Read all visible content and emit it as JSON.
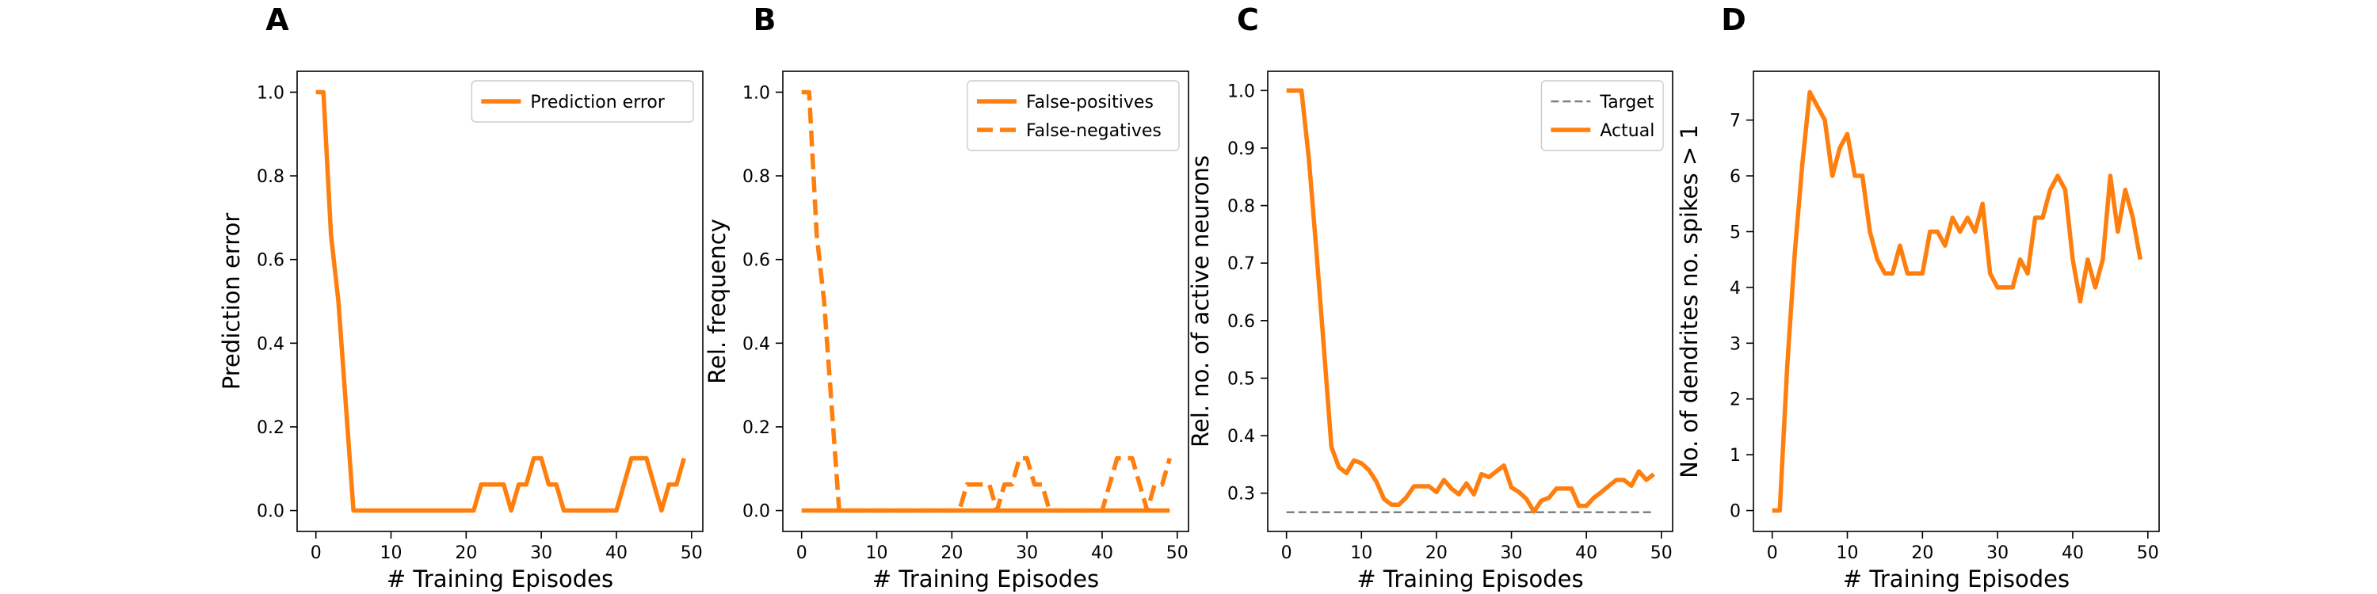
{
  "colors": {
    "orange": "#ff7f0e",
    "target": "#7f7f7f",
    "axis": "#000000"
  },
  "chart_data": [
    {
      "type": "line",
      "panel": "A",
      "xlabel": "# Training Episodes",
      "ylabel": "Prediction error",
      "xlim": [
        -2.5,
        51.5
      ],
      "ylim": [
        -0.05,
        1.05
      ],
      "xticks": [
        0,
        10,
        20,
        30,
        40,
        50
      ],
      "yticks": [
        0.0,
        0.2,
        0.4,
        0.6,
        0.8,
        1.0
      ],
      "ytick_decimals": 1,
      "legend_position": "top-right",
      "series": [
        {
          "name": "Prediction error",
          "style": "solid",
          "x": [
            0,
            1,
            2,
            3,
            4,
            5,
            6,
            7,
            8,
            9,
            10,
            11,
            12,
            13,
            14,
            15,
            16,
            17,
            18,
            19,
            20,
            21,
            22,
            23,
            24,
            25,
            26,
            27,
            28,
            29,
            30,
            31,
            32,
            33,
            34,
            35,
            36,
            37,
            38,
            39,
            40,
            41,
            42,
            43,
            44,
            45,
            46,
            47,
            48,
            49
          ],
          "y": [
            1.0,
            1.0,
            0.66,
            0.5,
            0.25,
            0.0,
            0.0,
            0.0,
            0.0,
            0.0,
            0.0,
            0.0,
            0.0,
            0.0,
            0.0,
            0.0,
            0.0,
            0.0,
            0.0,
            0.0,
            0.0,
            0.0,
            0.062,
            0.062,
            0.062,
            0.062,
            0.0,
            0.062,
            0.062,
            0.125,
            0.125,
            0.062,
            0.062,
            0.0,
            0.0,
            0.0,
            0.0,
            0.0,
            0.0,
            0.0,
            0.0,
            0.062,
            0.125,
            0.125,
            0.125,
            0.062,
            0.0,
            0.062,
            0.062,
            0.125
          ]
        }
      ]
    },
    {
      "type": "line",
      "panel": "B",
      "xlabel": "# Training Episodes",
      "ylabel": "Rel. frequency",
      "xlim": [
        -2.5,
        51.5
      ],
      "ylim": [
        -0.05,
        1.05
      ],
      "xticks": [
        0,
        10,
        20,
        30,
        40,
        50
      ],
      "yticks": [
        0.0,
        0.2,
        0.4,
        0.6,
        0.8,
        1.0
      ],
      "ytick_decimals": 1,
      "legend_position": "top-right",
      "series": [
        {
          "name": "False-positives",
          "style": "solid",
          "x": [
            0,
            1,
            2,
            3,
            4,
            5,
            6,
            7,
            8,
            9,
            10,
            11,
            12,
            13,
            14,
            15,
            16,
            17,
            18,
            19,
            20,
            21,
            22,
            23,
            24,
            25,
            26,
            27,
            28,
            29,
            30,
            31,
            32,
            33,
            34,
            35,
            36,
            37,
            38,
            39,
            40,
            41,
            42,
            43,
            44,
            45,
            46,
            47,
            48,
            49
          ],
          "y": [
            0,
            0,
            0,
            0,
            0,
            0,
            0,
            0,
            0,
            0,
            0,
            0,
            0,
            0,
            0,
            0,
            0,
            0,
            0,
            0,
            0,
            0,
            0,
            0,
            0,
            0,
            0,
            0,
            0,
            0,
            0,
            0,
            0,
            0,
            0,
            0,
            0,
            0,
            0,
            0,
            0,
            0,
            0,
            0,
            0,
            0,
            0,
            0,
            0,
            0
          ]
        },
        {
          "name": "False-negatives",
          "style": "dashed",
          "x": [
            0,
            1,
            2,
            3,
            4,
            5,
            6,
            7,
            8,
            9,
            10,
            11,
            12,
            13,
            14,
            15,
            16,
            17,
            18,
            19,
            20,
            21,
            22,
            23,
            24,
            25,
            26,
            27,
            28,
            29,
            30,
            31,
            32,
            33,
            34,
            35,
            36,
            37,
            38,
            39,
            40,
            41,
            42,
            43,
            44,
            45,
            46,
            47,
            48,
            49
          ],
          "y": [
            1.0,
            1.0,
            0.66,
            0.5,
            0.25,
            0.0,
            0.0,
            0.0,
            0.0,
            0.0,
            0.0,
            0.0,
            0.0,
            0.0,
            0.0,
            0.0,
            0.0,
            0.0,
            0.0,
            0.0,
            0.0,
            0.0,
            0.062,
            0.062,
            0.062,
            0.062,
            0.0,
            0.062,
            0.062,
            0.125,
            0.125,
            0.062,
            0.062,
            0.0,
            0.0,
            0.0,
            0.0,
            0.0,
            0.0,
            0.0,
            0.0,
            0.062,
            0.125,
            0.125,
            0.125,
            0.062,
            0.0,
            0.062,
            0.062,
            0.125
          ]
        }
      ]
    },
    {
      "type": "line",
      "panel": "C",
      "xlabel": "# Training Episodes",
      "ylabel": "Rel. no. of active neurons",
      "xlim": [
        -2.5,
        51.5
      ],
      "ylim": [
        0.2335,
        1.0335
      ],
      "xticks": [
        0,
        10,
        20,
        30,
        40,
        50
      ],
      "yticks": [
        0.3,
        0.4,
        0.5,
        0.6,
        0.7,
        0.8,
        0.9,
        1.0
      ],
      "ytick_decimals": 1,
      "legend_position": "top-right",
      "series": [
        {
          "name": "Target",
          "style": "dashed-thin",
          "x": [
            0,
            49
          ],
          "y": [
            0.267,
            0.267
          ]
        },
        {
          "name": "Actual",
          "style": "solid",
          "x": [
            0,
            1,
            2,
            3,
            4,
            5,
            6,
            7,
            8,
            9,
            10,
            11,
            12,
            13,
            14,
            15,
            16,
            17,
            18,
            19,
            20,
            21,
            22,
            23,
            24,
            25,
            26,
            27,
            28,
            29,
            30,
            31,
            32,
            33,
            34,
            35,
            36,
            37,
            38,
            39,
            40,
            41,
            42,
            43,
            44,
            45,
            46,
            47,
            48,
            49
          ],
          "y": [
            1.0,
            1.0,
            1.0,
            0.88,
            0.72,
            0.55,
            0.38,
            0.345,
            0.335,
            0.357,
            0.352,
            0.34,
            0.32,
            0.29,
            0.28,
            0.28,
            0.293,
            0.312,
            0.312,
            0.312,
            0.302,
            0.323,
            0.308,
            0.298,
            0.317,
            0.298,
            0.333,
            0.328,
            0.338,
            0.348,
            0.31,
            0.302,
            0.29,
            0.268,
            0.287,
            0.292,
            0.308,
            0.308,
            0.308,
            0.278,
            0.278,
            0.292,
            0.302,
            0.313,
            0.323,
            0.323,
            0.313,
            0.338,
            0.323,
            0.333
          ]
        }
      ]
    },
    {
      "type": "line",
      "panel": "D",
      "xlabel": "# Training Episodes",
      "ylabel": "No. of dendrites no. spikes > 1",
      "xlim": [
        -2.5,
        51.5
      ],
      "ylim": [
        -0.375,
        7.875
      ],
      "xticks": [
        0,
        10,
        20,
        30,
        40,
        50
      ],
      "yticks": [
        0,
        1,
        2,
        3,
        4,
        5,
        6,
        7
      ],
      "ytick_decimals": 0,
      "legend_position": "none",
      "series": [
        {
          "name": "",
          "style": "solid",
          "x": [
            0,
            1,
            2,
            3,
            4,
            5,
            6,
            7,
            8,
            9,
            10,
            11,
            12,
            13,
            14,
            15,
            16,
            17,
            18,
            19,
            20,
            21,
            22,
            23,
            24,
            25,
            26,
            27,
            28,
            29,
            30,
            31,
            32,
            33,
            34,
            35,
            36,
            37,
            38,
            39,
            40,
            41,
            42,
            43,
            44,
            45,
            46,
            47,
            48,
            49
          ],
          "y": [
            0.0,
            0.0,
            2.6,
            4.6,
            6.2,
            7.5,
            7.25,
            7.0,
            6.0,
            6.5,
            6.75,
            6.0,
            6.0,
            5.0,
            4.5,
            4.25,
            4.25,
            4.75,
            4.25,
            4.25,
            4.25,
            5.0,
            5.0,
            4.75,
            5.25,
            5.0,
            5.25,
            5.0,
            5.5,
            4.25,
            4.0,
            4.0,
            4.0,
            4.5,
            4.25,
            5.25,
            5.25,
            5.75,
            6.0,
            5.75,
            4.5,
            3.75,
            4.5,
            4.0,
            4.5,
            6.0,
            5.0,
            5.75,
            5.25,
            4.5
          ]
        }
      ]
    }
  ]
}
